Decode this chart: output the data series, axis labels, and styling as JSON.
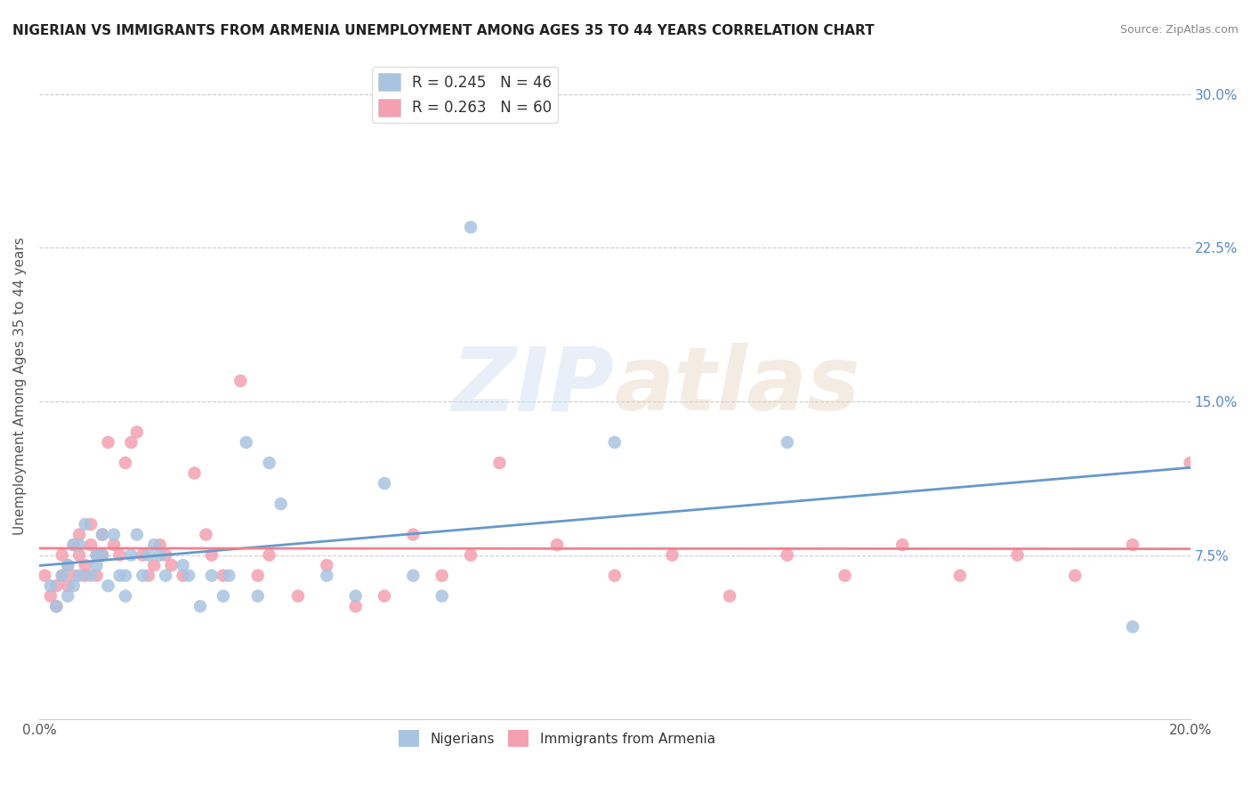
{
  "title": "NIGERIAN VS IMMIGRANTS FROM ARMENIA UNEMPLOYMENT AMONG AGES 35 TO 44 YEARS CORRELATION CHART",
  "source": "Source: ZipAtlas.com",
  "ylabel": "Unemployment Among Ages 35 to 44 years",
  "xlim": [
    0.0,
    0.2
  ],
  "ylim": [
    -0.005,
    0.32
  ],
  "right_yticks": [
    0.075,
    0.15,
    0.225,
    0.3
  ],
  "right_yticklabels": [
    "7.5%",
    "15.0%",
    "22.5%",
    "30.0%"
  ],
  "legend_entries": [
    {
      "label": "R = 0.245   N = 46",
      "color": "#a8c4e0"
    },
    {
      "label": "R = 0.263   N = 60",
      "color": "#f4a0b0"
    }
  ],
  "nigerians_x": [
    0.002,
    0.003,
    0.004,
    0.005,
    0.005,
    0.006,
    0.006,
    0.007,
    0.007,
    0.008,
    0.009,
    0.01,
    0.01,
    0.011,
    0.011,
    0.012,
    0.013,
    0.014,
    0.015,
    0.015,
    0.016,
    0.017,
    0.018,
    0.019,
    0.02,
    0.021,
    0.022,
    0.025,
    0.026,
    0.028,
    0.03,
    0.032,
    0.033,
    0.036,
    0.038,
    0.04,
    0.042,
    0.05,
    0.055,
    0.06,
    0.065,
    0.07,
    0.075,
    0.1,
    0.13,
    0.19
  ],
  "nigerians_y": [
    0.06,
    0.05,
    0.065,
    0.07,
    0.055,
    0.08,
    0.06,
    0.08,
    0.065,
    0.09,
    0.065,
    0.075,
    0.07,
    0.085,
    0.075,
    0.06,
    0.085,
    0.065,
    0.065,
    0.055,
    0.075,
    0.085,
    0.065,
    0.075,
    0.08,
    0.075,
    0.065,
    0.07,
    0.065,
    0.05,
    0.065,
    0.055,
    0.065,
    0.13,
    0.055,
    0.12,
    0.1,
    0.065,
    0.055,
    0.11,
    0.065,
    0.055,
    0.235,
    0.13,
    0.13,
    0.04
  ],
  "armenia_x": [
    0.001,
    0.002,
    0.003,
    0.003,
    0.004,
    0.004,
    0.005,
    0.005,
    0.006,
    0.006,
    0.007,
    0.007,
    0.008,
    0.008,
    0.009,
    0.009,
    0.01,
    0.01,
    0.011,
    0.011,
    0.012,
    0.013,
    0.014,
    0.015,
    0.016,
    0.017,
    0.018,
    0.019,
    0.02,
    0.021,
    0.022,
    0.023,
    0.025,
    0.027,
    0.029,
    0.03,
    0.032,
    0.035,
    0.038,
    0.04,
    0.045,
    0.05,
    0.055,
    0.06,
    0.065,
    0.07,
    0.075,
    0.08,
    0.09,
    0.1,
    0.11,
    0.12,
    0.13,
    0.14,
    0.15,
    0.16,
    0.17,
    0.18,
    0.19,
    0.2
  ],
  "armenia_y": [
    0.065,
    0.055,
    0.06,
    0.05,
    0.065,
    0.075,
    0.06,
    0.07,
    0.065,
    0.08,
    0.075,
    0.085,
    0.07,
    0.065,
    0.08,
    0.09,
    0.075,
    0.065,
    0.075,
    0.085,
    0.13,
    0.08,
    0.075,
    0.12,
    0.13,
    0.135,
    0.075,
    0.065,
    0.07,
    0.08,
    0.075,
    0.07,
    0.065,
    0.115,
    0.085,
    0.075,
    0.065,
    0.16,
    0.065,
    0.075,
    0.055,
    0.07,
    0.05,
    0.055,
    0.085,
    0.065,
    0.075,
    0.12,
    0.08,
    0.065,
    0.075,
    0.055,
    0.075,
    0.065,
    0.08,
    0.065,
    0.075,
    0.065,
    0.08,
    0.12
  ],
  "blue_line_color": "#6699cc",
  "pink_line_color": "#f08090",
  "blue_scatter_color": "#a8c4e0",
  "pink_scatter_color": "#f4a0b0",
  "grid_color": "#cccccc",
  "title_color": "#222222",
  "source_color": "#888888",
  "ylabel_color": "#555555",
  "xtick_color": "#555555",
  "right_ytick_color": "#5588cc"
}
